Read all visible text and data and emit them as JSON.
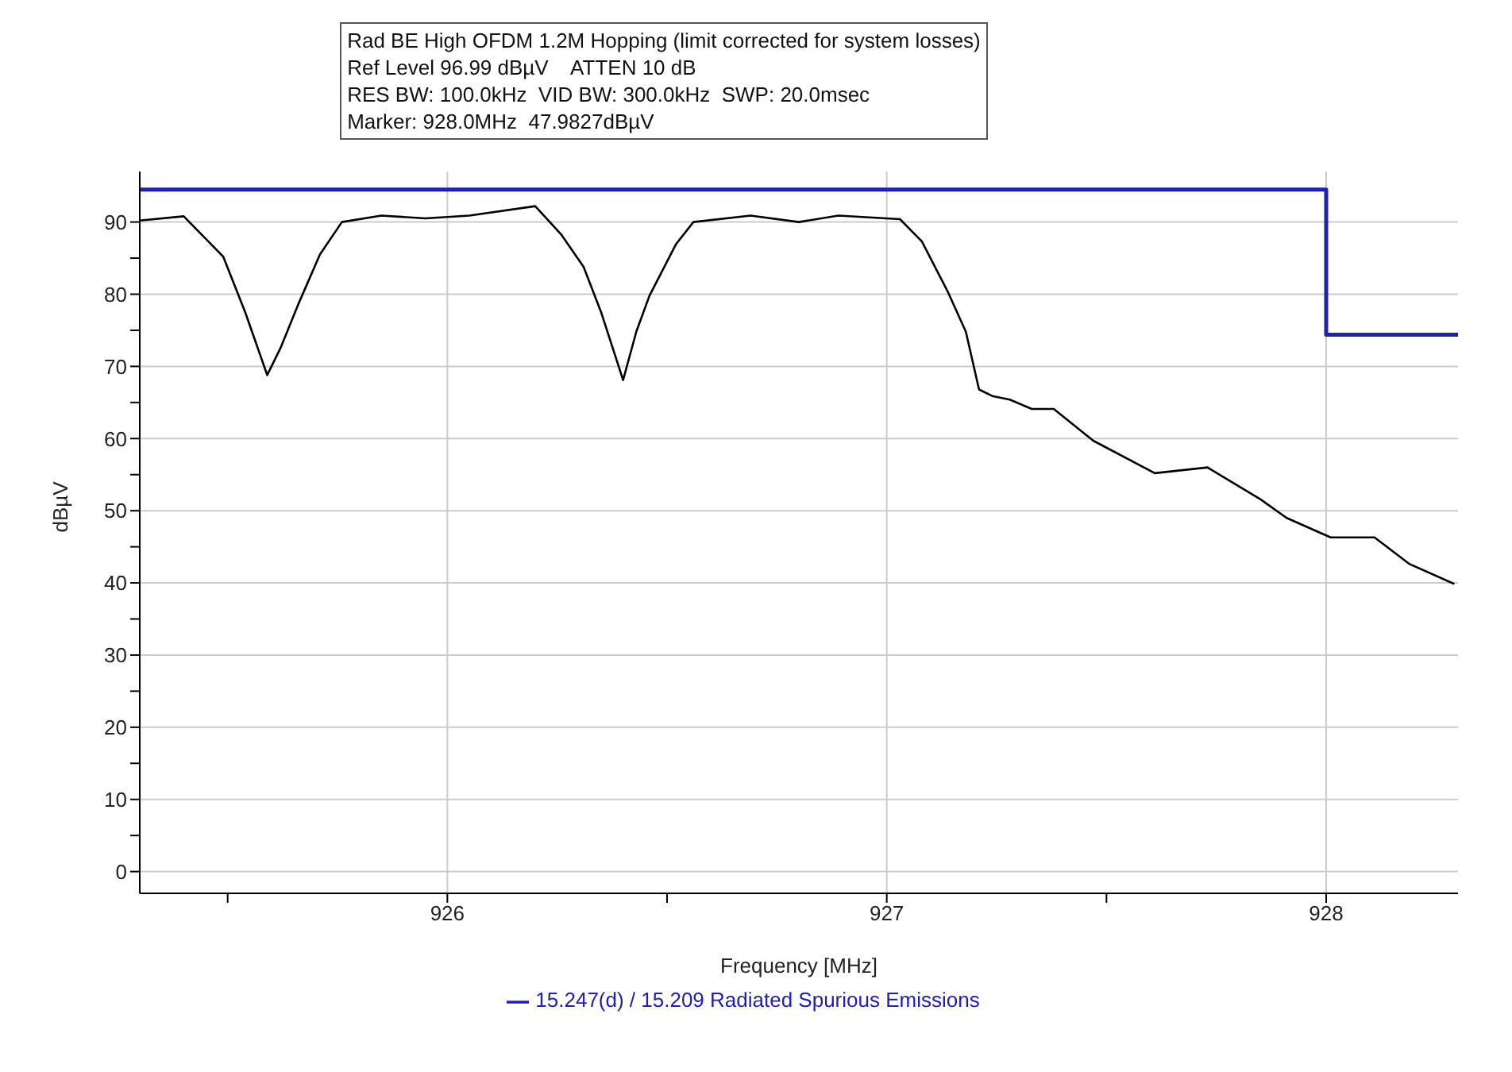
{
  "chart_data": {
    "type": "line",
    "title": "Rad BE High OFDM 1.2M Hopping (limit corrected for system losses)",
    "annotations": [
      "Ref Level 96.99 dBµV    ATTEN 10 dB",
      "RES BW: 100.0kHz  VID BW: 300.0kHz  SWP: 20.0msec",
      "Marker: 928.0MHz  47.9827dBµV"
    ],
    "xlabel": "Frequency [MHz]",
    "ylabel": "dBµV",
    "xlim": [
      925.3,
      928.3
    ],
    "ylim": [
      -3,
      97
    ],
    "xticks": [
      {
        "value": 925.5,
        "label": null
      },
      926,
      {
        "value": 926.5,
        "label": null
      },
      927,
      {
        "value": 927.5,
        "label": null
      },
      928
    ],
    "yticks": [
      0,
      {
        "value": 5,
        "label": null
      },
      10,
      {
        "value": 15,
        "label": null
      },
      20,
      {
        "value": 25,
        "label": null
      },
      30,
      {
        "value": 35,
        "label": null
      },
      40,
      {
        "value": 45,
        "label": null
      },
      50,
      {
        "value": 55,
        "label": null
      },
      60,
      {
        "value": 65,
        "label": null
      },
      70,
      {
        "value": 75,
        "label": null
      },
      80,
      {
        "value": 85,
        "label": null
      },
      90
    ],
    "grid": true,
    "legend": "bottom",
    "series": [
      {
        "type": "step",
        "name": "15.247(d) / 15.209 Radiated Spurious Emissions",
        "color": "#2020b0",
        "x": [
          925.3,
          928,
          928.3
        ],
        "values": [
          94.5,
          74.4,
          74.4
        ]
      },
      {
        "type": "line",
        "color": "#000000",
        "x": [
          925.3,
          925.4,
          925.49,
          925.54,
          925.59,
          925.62,
          925.66,
          925.71,
          925.76,
          925.85,
          925.95,
          926.05,
          926.2,
          926.26,
          926.31,
          926.35,
          926.4,
          926.43,
          926.46,
          926.52,
          926.56,
          926.69,
          926.8,
          926.89,
          927.03,
          927.08,
          927.14,
          927.18,
          927.21,
          927.24,
          927.28,
          927.33,
          927.38,
          927.47,
          927.61,
          927.73,
          927.85,
          927.91,
          928.01,
          928.11,
          928.19,
          928.29
        ],
        "values": [
          90.2,
          90.8,
          85.2,
          77.5,
          68.8,
          72.5,
          78.5,
          85.5,
          90,
          90.9,
          90.5,
          90.9,
          92.2,
          88.2,
          83.8,
          77.5,
          68.1,
          74.8,
          79.8,
          86.9,
          90,
          90.9,
          90,
          90.9,
          90.4,
          87.3,
          80.2,
          74.8,
          66.8,
          65.9,
          65.4,
          64.1,
          64.1,
          59.7,
          55.2,
          56,
          51.6,
          49,
          46.3,
          46.3,
          42.6,
          39.9
        ]
      }
    ]
  }
}
